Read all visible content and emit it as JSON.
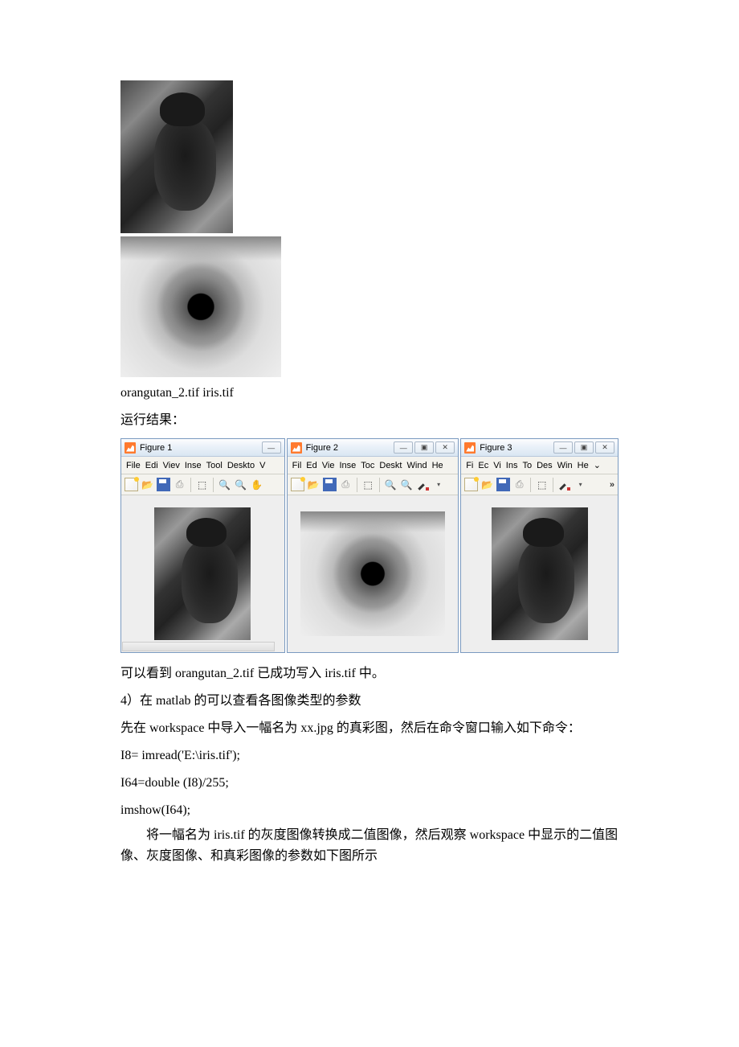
{
  "images_caption": "orangutan_2.tif iris.tif",
  "run_label": "运行结果：",
  "figures": [
    {
      "title": "Figure 1",
      "menus": [
        "File",
        "Edi",
        "Viev",
        "Inse",
        "Tool",
        "Deskto",
        "V"
      ],
      "content": "orangutan",
      "has_win_buttons": false,
      "partial_min": true
    },
    {
      "title": "Figure 2",
      "menus": [
        "Fil",
        "Ed",
        "Vie",
        "Inse",
        "Toc",
        "Deskt",
        "Wind",
        "He"
      ],
      "content": "eye",
      "has_win_buttons": true
    },
    {
      "title": "Figure 3",
      "menus": [
        "Fi",
        "Ec",
        "Vi",
        "Ins",
        "To",
        "Des",
        "Win",
        "He",
        "⌄"
      ],
      "content": "orangutan",
      "has_win_buttons": true,
      "has_more": true
    }
  ],
  "body_text": {
    "line1": "可以看到 orangutan_2.tif 已成功写入 iris.tif 中。",
    "line2": "4）在 matlab 的可以查看各图像类型的参数",
    "line3": "先在 workspace 中导入一幅名为 xx.jpg 的真彩图，然后在命令窗口输入如下命令：",
    "code1": " I8= imread('E:\\iris.tif');",
    "code2": "I64=double (I8)/255;",
    "code3": "imshow(I64);",
    "para": "将一幅名为 iris.tif 的灰度图像转换成二值图像，然后观察 workspace 中显示的二值图像、灰度图像、和真彩图像的参数如下图所示"
  },
  "win_controls": {
    "min": "—",
    "max": "▣",
    "close": "✕"
  }
}
